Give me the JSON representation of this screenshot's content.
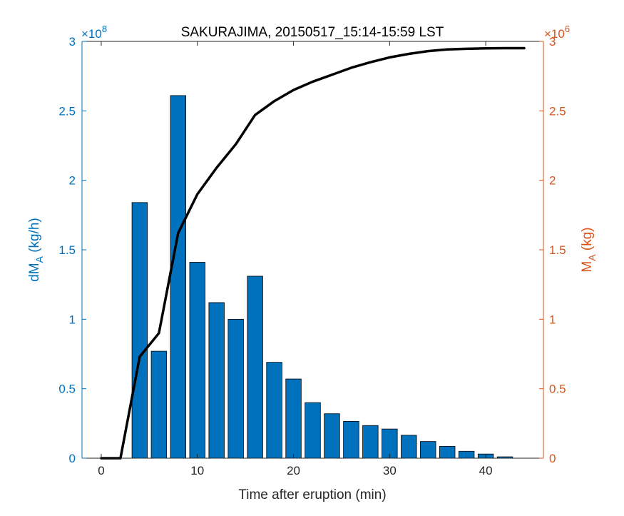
{
  "chart_data": {
    "type": "bar",
    "title": "SAKURAJIMA, 20150517_15:14-15:59 LST",
    "xlabel": "Time after eruption (min)",
    "xlim": [
      -2,
      46
    ],
    "xticks": [
      0,
      10,
      20,
      30,
      40
    ],
    "left_axis": {
      "label_main": "dM",
      "label_sub": "A",
      "label_tail": " (kg/h)",
      "ylim": [
        0,
        3
      ],
      "ticks": [
        0,
        0.5,
        1,
        1.5,
        2,
        2.5,
        3
      ],
      "tick_labels": [
        "0",
        "0.5",
        "1",
        "1.5",
        "2",
        "2.5",
        "3"
      ],
      "exponent_prefix": "×10",
      "exponent": "8",
      "color": "#0072BD"
    },
    "right_axis": {
      "label_main": "M",
      "label_sub": "A",
      "label_tail": " (kg)",
      "ylim": [
        0,
        3
      ],
      "ticks": [
        0,
        0.5,
        1,
        1.5,
        2,
        2.5,
        3
      ],
      "tick_labels": [
        "0",
        "0.5",
        "1",
        "1.5",
        "2",
        "2.5",
        "3"
      ],
      "exponent_prefix": "×10",
      "exponent": "6",
      "color": "#D95319"
    },
    "bars": {
      "color": "#0072BD",
      "x": [
        4,
        6,
        8,
        10,
        12,
        14,
        16,
        18,
        20,
        22,
        24,
        26,
        28,
        30,
        32,
        34,
        36,
        38,
        40,
        42
      ],
      "values": [
        1.84,
        0.77,
        2.61,
        1.41,
        1.12,
        1.0,
        1.31,
        0.69,
        0.57,
        0.4,
        0.32,
        0.265,
        0.235,
        0.21,
        0.165,
        0.12,
        0.085,
        0.05,
        0.03,
        0.01
      ],
      "width": 1.6
    },
    "line": {
      "color": "#000000",
      "x": [
        0,
        2,
        4,
        6,
        8,
        10,
        12,
        14,
        16,
        18,
        20,
        22,
        24,
        26,
        28,
        30,
        32,
        34,
        36,
        38,
        40,
        42,
        44
      ],
      "values": [
        0,
        0,
        0.73,
        0.9,
        1.62,
        1.9,
        2.09,
        2.26,
        2.47,
        2.57,
        2.65,
        2.71,
        2.76,
        2.81,
        2.85,
        2.885,
        2.91,
        2.93,
        2.942,
        2.947,
        2.95,
        2.951,
        2.951
      ]
    }
  }
}
